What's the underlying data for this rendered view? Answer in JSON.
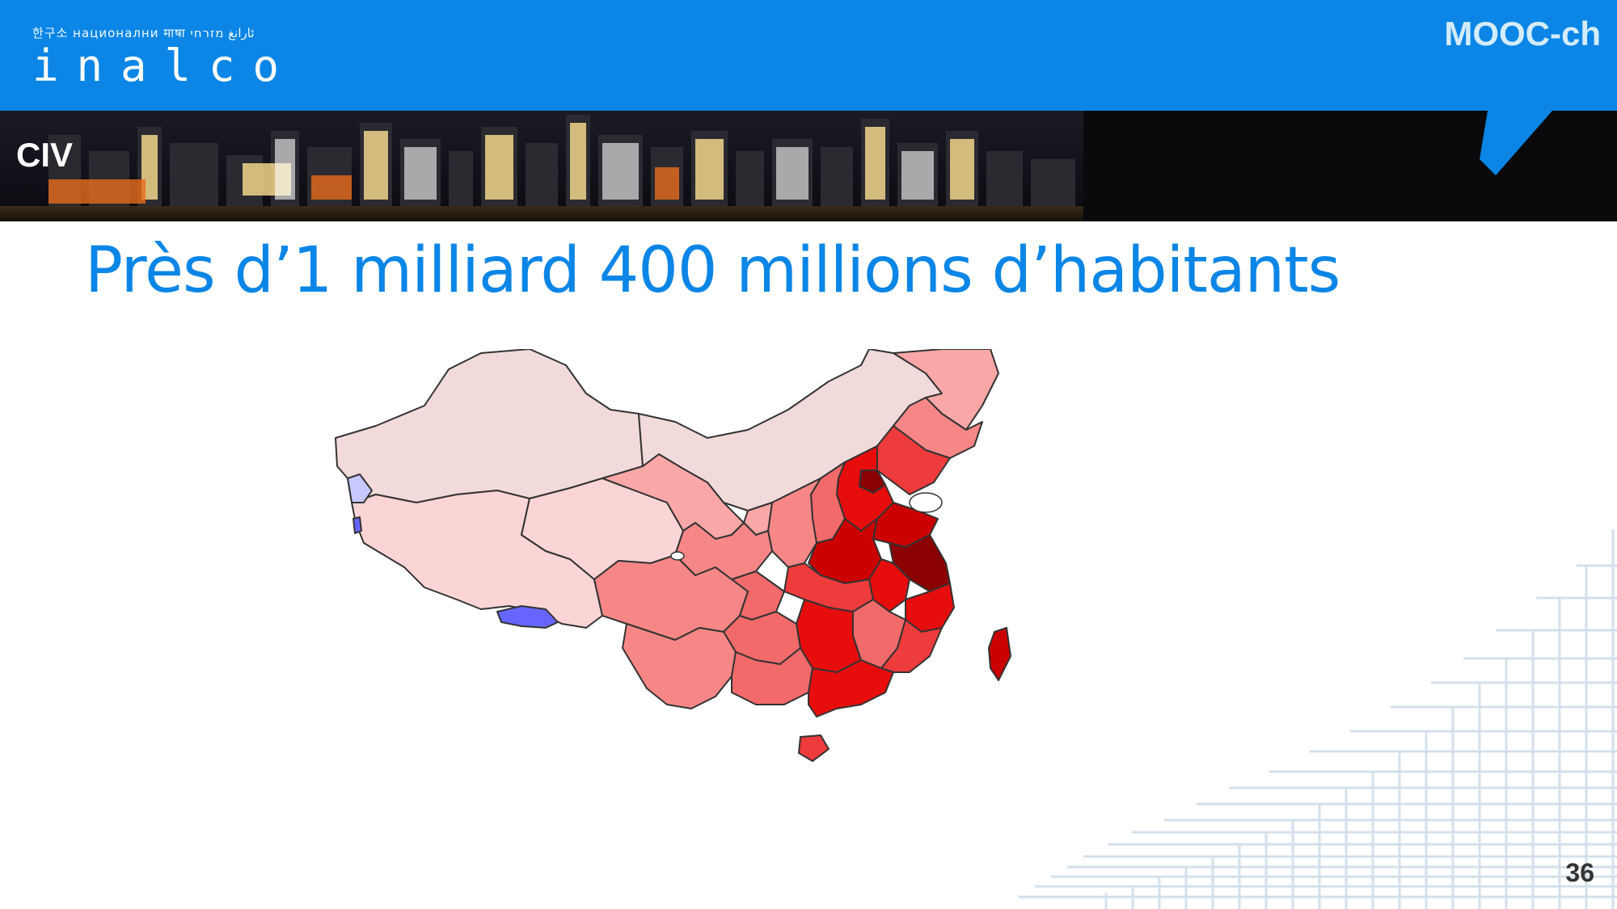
{
  "header": {
    "logo_languages": "한구소 национални माषा ئارانغ מזרחי",
    "logo_name": "inalco",
    "brand_label": "MOOC-ch",
    "banner_section": "CIV"
  },
  "slide": {
    "title": "Près d’1 milliard 400 millions d’habitants",
    "page_number": "36"
  },
  "map": {
    "subject": "China provinces population shading",
    "colors": {
      "very_low": "#f2dada",
      "low": "#fbd5d5",
      "light": "#faa7a7",
      "medium_light": "#f78787",
      "medium": "#f26a6a",
      "medium_high": "#ee3b3b",
      "high": "#e70d0d",
      "very_high": "#cc0000",
      "max": "#8b0000",
      "no_data": "#6666ff",
      "no_data_light": "#c8c8ff"
    }
  },
  "colors": {
    "accent": "#0b86e6",
    "header_bar": "#0b86e6",
    "banner_bg": "#0a0a0c"
  }
}
